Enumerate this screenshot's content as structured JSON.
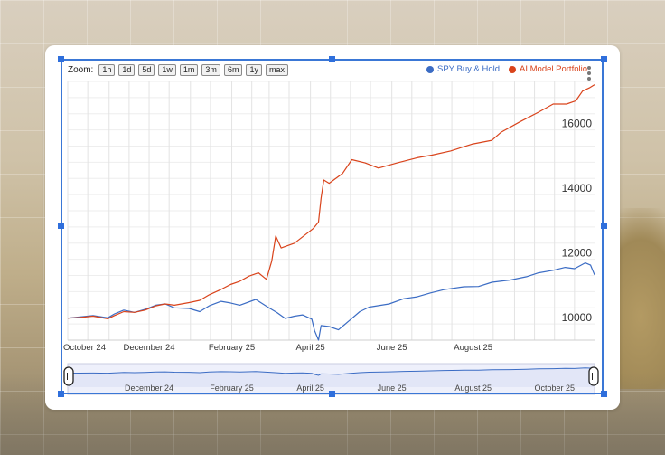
{
  "zoom": {
    "label": "Zoom:",
    "buttons": [
      "1h",
      "1d",
      "5d",
      "1w",
      "1m",
      "3m",
      "6m",
      "1y",
      "max"
    ]
  },
  "colors": {
    "spy": "#3b6cc4",
    "ai": "#d9431b",
    "selection": "#3a77d6"
  },
  "chart_data": {
    "type": "line",
    "title": "",
    "xlabel": "",
    "ylabel": "",
    "ylim": [
      9300,
      17300
    ],
    "x_range": [
      "2024-10-01",
      "2025-10-31"
    ],
    "grid": true,
    "legend": "top-right",
    "y_ticks": [
      10000,
      12000,
      14000,
      16000
    ],
    "x_ticks": [
      {
        "label": "October 24",
        "date": "2024-10-01"
      },
      {
        "label": "December 24",
        "date": "2024-12-01"
      },
      {
        "label": "February 25",
        "date": "2025-02-01"
      },
      {
        "label": "April 25",
        "date": "2025-04-01"
      },
      {
        "label": "June 25",
        "date": "2025-06-01"
      },
      {
        "label": "August 25",
        "date": "2025-08-01"
      }
    ],
    "navigator_ticks": [
      {
        "label": "December 24",
        "date": "2024-12-01"
      },
      {
        "label": "February 25",
        "date": "2025-02-01"
      },
      {
        "label": "April 25",
        "date": "2025-04-01"
      },
      {
        "label": "June 25",
        "date": "2025-06-01"
      },
      {
        "label": "August 25",
        "date": "2025-08-01"
      },
      {
        "label": "October 25",
        "date": "2025-10-01"
      }
    ],
    "series": [
      {
        "name": "SPY Buy & Hold",
        "color": "#3b6cc4",
        "points": [
          [
            "2024-10-01",
            9980
          ],
          [
            "2024-10-10",
            10020
          ],
          [
            "2024-10-20",
            10060
          ],
          [
            "2024-10-31",
            9990
          ],
          [
            "2024-11-05",
            10110
          ],
          [
            "2024-11-12",
            10230
          ],
          [
            "2024-11-20",
            10160
          ],
          [
            "2024-11-28",
            10250
          ],
          [
            "2024-12-06",
            10380
          ],
          [
            "2024-12-13",
            10420
          ],
          [
            "2024-12-20",
            10300
          ],
          [
            "2024-12-31",
            10280
          ],
          [
            "2025-01-08",
            10180
          ],
          [
            "2025-01-15",
            10360
          ],
          [
            "2025-01-24",
            10500
          ],
          [
            "2025-01-31",
            10450
          ],
          [
            "2025-02-07",
            10380
          ],
          [
            "2025-02-19",
            10560
          ],
          [
            "2025-02-28",
            10320
          ],
          [
            "2025-03-07",
            10150
          ],
          [
            "2025-03-13",
            9970
          ],
          [
            "2025-03-20",
            10040
          ],
          [
            "2025-03-26",
            10080
          ],
          [
            "2025-04-02",
            9950
          ],
          [
            "2025-04-04",
            9600
          ],
          [
            "2025-04-07",
            9300
          ],
          [
            "2025-04-09",
            9750
          ],
          [
            "2025-04-15",
            9720
          ],
          [
            "2025-04-22",
            9620
          ],
          [
            "2025-04-30",
            9900
          ],
          [
            "2025-05-08",
            10180
          ],
          [
            "2025-05-15",
            10320
          ],
          [
            "2025-05-30",
            10420
          ],
          [
            "2025-06-10",
            10580
          ],
          [
            "2025-06-20",
            10640
          ],
          [
            "2025-06-30",
            10760
          ],
          [
            "2025-07-10",
            10860
          ],
          [
            "2025-07-25",
            10950
          ],
          [
            "2025-08-05",
            10960
          ],
          [
            "2025-08-15",
            11090
          ],
          [
            "2025-08-29",
            11160
          ],
          [
            "2025-09-10",
            11260
          ],
          [
            "2025-09-19",
            11380
          ],
          [
            "2025-09-30",
            11460
          ],
          [
            "2025-10-09",
            11550
          ],
          [
            "2025-10-16",
            11510
          ],
          [
            "2025-10-24",
            11690
          ],
          [
            "2025-10-28",
            11620
          ],
          [
            "2025-10-31",
            11320
          ]
        ]
      },
      {
        "name": "AI Model Portfolio",
        "color": "#d9431b",
        "points": [
          [
            "2024-10-01",
            9980
          ],
          [
            "2024-10-10",
            10000
          ],
          [
            "2024-10-20",
            10040
          ],
          [
            "2024-10-31",
            9960
          ],
          [
            "2024-11-05",
            10060
          ],
          [
            "2024-11-12",
            10180
          ],
          [
            "2024-11-20",
            10160
          ],
          [
            "2024-11-28",
            10230
          ],
          [
            "2024-12-06",
            10360
          ],
          [
            "2024-12-13",
            10420
          ],
          [
            "2024-12-20",
            10380
          ],
          [
            "2024-12-31",
            10460
          ],
          [
            "2025-01-08",
            10530
          ],
          [
            "2025-01-15",
            10700
          ],
          [
            "2025-01-24",
            10870
          ],
          [
            "2025-01-31",
            11020
          ],
          [
            "2025-02-07",
            11120
          ],
          [
            "2025-02-14",
            11280
          ],
          [
            "2025-02-21",
            11380
          ],
          [
            "2025-02-27",
            11180
          ],
          [
            "2025-03-03",
            11750
          ],
          [
            "2025-03-06",
            12520
          ],
          [
            "2025-03-10",
            12150
          ],
          [
            "2025-03-20",
            12300
          ],
          [
            "2025-03-31",
            12650
          ],
          [
            "2025-04-03",
            12750
          ],
          [
            "2025-04-07",
            12950
          ],
          [
            "2025-04-09",
            13700
          ],
          [
            "2025-04-11",
            14250
          ],
          [
            "2025-04-15",
            14150
          ],
          [
            "2025-04-25",
            14450
          ],
          [
            "2025-05-02",
            14880
          ],
          [
            "2025-05-12",
            14780
          ],
          [
            "2025-05-22",
            14620
          ],
          [
            "2025-06-05",
            14780
          ],
          [
            "2025-06-20",
            14940
          ],
          [
            "2025-07-01",
            15020
          ],
          [
            "2025-07-15",
            15150
          ],
          [
            "2025-07-31",
            15360
          ],
          [
            "2025-08-15",
            15480
          ],
          [
            "2025-08-22",
            15730
          ],
          [
            "2025-09-05",
            16050
          ],
          [
            "2025-09-19",
            16350
          ],
          [
            "2025-09-30",
            16600
          ],
          [
            "2025-10-10",
            16600
          ],
          [
            "2025-10-17",
            16700
          ],
          [
            "2025-10-22",
            17000
          ],
          [
            "2025-10-27",
            17100
          ],
          [
            "2025-10-31",
            17200
          ]
        ]
      }
    ]
  }
}
